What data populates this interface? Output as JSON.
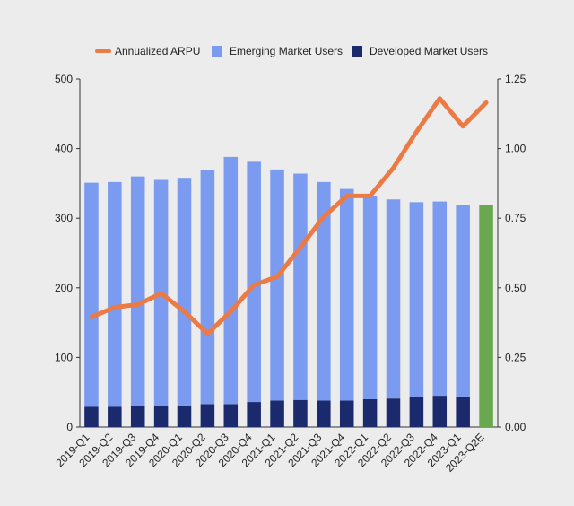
{
  "chart_data": {
    "type": "bar",
    "stacked": true,
    "categories": [
      "2019-Q1",
      "2019-Q2",
      "2019-Q3",
      "2019-Q4",
      "2020-Q1",
      "2020-Q2",
      "2020-Q3",
      "2020-Q4",
      "2021-Q1",
      "2021-Q2",
      "2021-Q3",
      "2021-Q4",
      "2022-Q1",
      "2022-Q2",
      "2022-Q3",
      "2022-Q4",
      "2023-Q1",
      "2023-Q2E"
    ],
    "series": [
      {
        "name": "Developed Market Users",
        "type": "bar",
        "axis": "left",
        "color": "#1a2a6c",
        "values": [
          29,
          29,
          30,
          30,
          31,
          33,
          33,
          36,
          38,
          39,
          38,
          38,
          40,
          41,
          43,
          45,
          44,
          null
        ]
      },
      {
        "name": "Emerging Market Users",
        "type": "bar",
        "axis": "left",
        "color": "#7b9bf0",
        "values": [
          322,
          323,
          330,
          325,
          327,
          336,
          355,
          345,
          332,
          325,
          314,
          304,
          292,
          286,
          280,
          279,
          275,
          null
        ]
      },
      {
        "name": "Annualized ARPU",
        "type": "line",
        "axis": "right",
        "color": "#ec7a45",
        "values": [
          0.395,
          0.43,
          0.44,
          0.48,
          0.415,
          0.335,
          0.415,
          0.51,
          0.54,
          0.645,
          0.755,
          0.83,
          0.83,
          0.93,
          1.06,
          1.18,
          1.08,
          1.165
        ]
      }
    ],
    "projection": {
      "category": "2023-Q2E",
      "value": 319,
      "color": "#6aa84f"
    },
    "yaxis_left": {
      "ylim": [
        0,
        500
      ],
      "ticks": [
        "0",
        "100",
        "200",
        "300",
        "400",
        "500"
      ]
    },
    "yaxis_right": {
      "ylim": [
        0,
        1.25
      ],
      "ticks": [
        "0.00",
        "0.25",
        "0.50",
        "0.75",
        "1.00",
        "1.25"
      ]
    },
    "legend": {
      "position": "top",
      "items": [
        {
          "label": "Annualized ARPU",
          "marker": "line",
          "color": "#ec7a45"
        },
        {
          "label": "Emerging Market Users",
          "marker": "square",
          "color": "#7b9bf0"
        },
        {
          "label": "Developed Market Users",
          "marker": "square",
          "color": "#1a2a6c"
        }
      ]
    },
    "grid": false
  }
}
